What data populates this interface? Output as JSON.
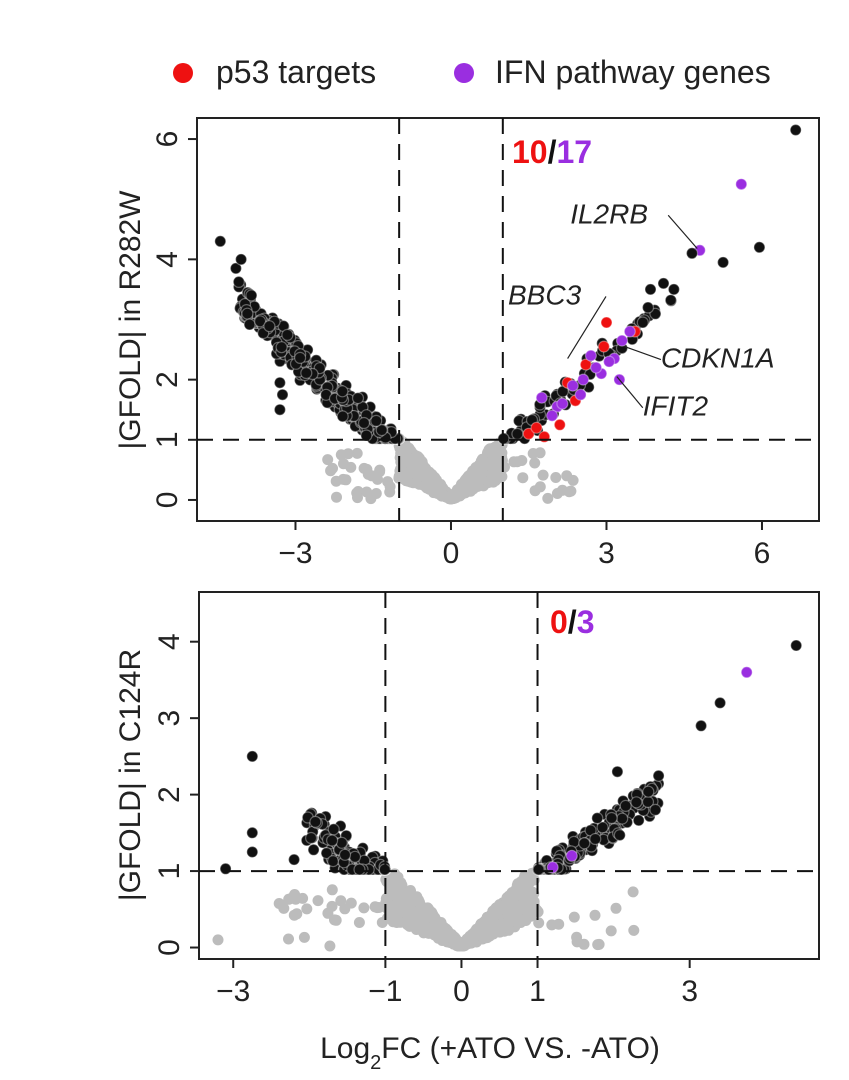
{
  "legend": [
    {
      "label": "p53 targets",
      "color": "#ee1111"
    },
    {
      "label": "IFN pathway genes",
      "color": "#9a2ee0"
    }
  ],
  "colors": {
    "sig": "#111111",
    "nonsig": "#bcbcbc",
    "p53": "#ee1111",
    "ifn": "#9a2ee0",
    "separator": "#111111"
  },
  "chart_data": [
    {
      "type": "scatter",
      "title": "",
      "ylabel": "|GFOLD| in R282W",
      "xlabel": "",
      "xlim": [
        -4.9,
        7.1
      ],
      "ylim": [
        -0.35,
        6.35
      ],
      "xticks": [
        {
          "v": -3,
          "label": "−3"
        },
        {
          "v": 0,
          "label": "0"
        },
        {
          "v": 3,
          "label": "3"
        },
        {
          "v": 6,
          "label": "6"
        }
      ],
      "yticks": [
        {
          "v": 0,
          "label": "0"
        },
        {
          "v": 1,
          "label": "1"
        },
        {
          "v": 2,
          "label": "2"
        },
        {
          "v": 4,
          "label": "4"
        },
        {
          "v": 6,
          "label": "6"
        }
      ],
      "vlines": [
        -1,
        1
      ],
      "hline": 1,
      "counts": {
        "p53": "10",
        "separator": "/",
        "ifn": "17"
      },
      "named_points": [
        {
          "x": 6.65,
          "y": 6.15,
          "group": "sig"
        },
        {
          "x": 5.6,
          "y": 5.25,
          "group": "ifn"
        },
        {
          "x": 4.8,
          "y": 4.15,
          "group": "ifn"
        },
        {
          "x": 4.65,
          "y": 4.1,
          "group": "sig"
        },
        {
          "x": 5.25,
          "y": 3.95,
          "group": "sig"
        },
        {
          "x": 5.95,
          "y": 4.2,
          "group": "sig"
        },
        {
          "x": 3.55,
          "y": 2.8,
          "group": "p53"
        },
        {
          "x": 3.0,
          "y": 2.95,
          "group": "p53"
        },
        {
          "x": 2.4,
          "y": 1.65,
          "group": "p53"
        },
        {
          "x": 2.1,
          "y": 1.25,
          "group": "p53"
        },
        {
          "x": 1.8,
          "y": 1.05,
          "group": "p53"
        },
        {
          "x": 1.5,
          "y": 1.1,
          "group": "p53"
        },
        {
          "x": 2.6,
          "y": 2.25,
          "group": "p53"
        },
        {
          "x": 2.95,
          "y": 2.55,
          "group": "p53"
        },
        {
          "x": 1.65,
          "y": 1.2,
          "group": "p53"
        },
        {
          "x": 2.25,
          "y": 1.95,
          "group": "p53"
        },
        {
          "x": 2.7,
          "y": 2.4,
          "group": "ifn"
        },
        {
          "x": 3.15,
          "y": 2.35,
          "group": "ifn"
        },
        {
          "x": 2.9,
          "y": 2.1,
          "group": "ifn"
        },
        {
          "x": 2.55,
          "y": 2.0,
          "group": "ifn"
        },
        {
          "x": 2.05,
          "y": 1.55,
          "group": "ifn"
        },
        {
          "x": 1.75,
          "y": 1.7,
          "group": "ifn"
        },
        {
          "x": 3.3,
          "y": 2.65,
          "group": "ifn"
        },
        {
          "x": 1.95,
          "y": 1.4,
          "group": "ifn"
        },
        {
          "x": 2.35,
          "y": 1.9,
          "group": "ifn"
        },
        {
          "x": 3.05,
          "y": 2.3,
          "group": "ifn"
        },
        {
          "x": 2.8,
          "y": 2.2,
          "group": "ifn"
        },
        {
          "x": 3.25,
          "y": 2.0,
          "group": "ifn"
        },
        {
          "x": 2.5,
          "y": 1.75,
          "group": "ifn"
        },
        {
          "x": 2.15,
          "y": 1.6,
          "group": "ifn"
        },
        {
          "x": 3.45,
          "y": 2.8,
          "group": "ifn"
        },
        {
          "x": -4.45,
          "y": 4.3,
          "group": "sig"
        },
        {
          "x": -4.15,
          "y": 3.85,
          "group": "sig"
        },
        {
          "x": -4.05,
          "y": 4.0,
          "group": "sig"
        },
        {
          "x": -3.85,
          "y": 3.4,
          "group": "sig"
        },
        {
          "x": -3.3,
          "y": 1.5,
          "group": "sig"
        },
        {
          "x": -3.25,
          "y": 1.75,
          "group": "sig"
        },
        {
          "x": -3.3,
          "y": 1.95,
          "group": "sig"
        },
        {
          "x": 4.3,
          "y": 3.5,
          "group": "sig"
        },
        {
          "x": 4.1,
          "y": 3.6,
          "group": "sig"
        },
        {
          "x": 3.8,
          "y": 3.2,
          "group": "sig"
        },
        {
          "x": 3.7,
          "y": 2.95,
          "group": "sig"
        },
        {
          "x": 3.85,
          "y": 3.5,
          "group": "sig"
        }
      ],
      "annotations": [
        {
          "text": "IL2RB",
          "x": 2.3,
          "y": 4.6,
          "px": 4.75,
          "py": 4.18,
          "anchor": "start"
        },
        {
          "text": "BBC3",
          "x": 1.1,
          "y": 3.25,
          "px": 2.25,
          "py": 2.35,
          "anchor": "start"
        },
        {
          "text": "CDKN1A",
          "x": 4.05,
          "y": 2.2,
          "px": 3.35,
          "py": 2.55,
          "anchor": "start"
        },
        {
          "text": "IFIT2",
          "x": 3.7,
          "y": 1.4,
          "px": 3.2,
          "py": 2.05,
          "anchor": "start"
        }
      ],
      "gen": {
        "seed": 11,
        "sig_left": 360,
        "sig_right": 70,
        "nonsig": 900,
        "left_min": -4.1,
        "right_max": 4.3
      }
    },
    {
      "type": "scatter",
      "title": "",
      "ylabel": "|GFOLD| in C124R",
      "xlabel": "Log2FC (+ATO VS. -ATO)",
      "xlim": [
        -3.45,
        4.7
      ],
      "ylim": [
        -0.15,
        4.65
      ],
      "xticks": [
        {
          "v": -3,
          "label": "−3"
        },
        {
          "v": -1,
          "label": "−1"
        },
        {
          "v": 0,
          "label": "0"
        },
        {
          "v": 1,
          "label": "1"
        },
        {
          "v": 3,
          "label": "3"
        }
      ],
      "yticks": [
        {
          "v": 0,
          "label": "0"
        },
        {
          "v": 1,
          "label": "1"
        },
        {
          "v": 2,
          "label": "2"
        },
        {
          "v": 3,
          "label": "3"
        },
        {
          "v": 4,
          "label": "4"
        }
      ],
      "vlines": [
        -1,
        1
      ],
      "hline": 1,
      "counts": {
        "p53": "0",
        "separator": "/",
        "ifn": "3"
      },
      "named_points": [
        {
          "x": 4.4,
          "y": 3.95,
          "group": "sig"
        },
        {
          "x": 3.75,
          "y": 3.6,
          "group": "ifn"
        },
        {
          "x": 3.4,
          "y": 3.2,
          "group": "sig"
        },
        {
          "x": 3.15,
          "y": 2.9,
          "group": "sig"
        },
        {
          "x": -2.75,
          "y": 2.5,
          "group": "sig"
        },
        {
          "x": -2.75,
          "y": 1.5,
          "group": "sig"
        },
        {
          "x": -2.75,
          "y": 1.25,
          "group": "sig"
        },
        {
          "x": -3.1,
          "y": 1.03,
          "group": "sig"
        },
        {
          "x": -2.2,
          "y": 1.15,
          "group": "sig"
        },
        {
          "x": 2.05,
          "y": 2.3,
          "group": "sig"
        },
        {
          "x": 2.55,
          "y": 1.8,
          "group": "sig"
        },
        {
          "x": 2.3,
          "y": 1.9,
          "group": "sig"
        },
        {
          "x": 1.45,
          "y": 1.2,
          "group": "ifn"
        },
        {
          "x": 1.2,
          "y": 1.05,
          "group": "ifn"
        },
        {
          "x": -3.2,
          "y": 0.1,
          "group": "nonsig"
        }
      ],
      "annotations": [],
      "gen": {
        "seed": 23,
        "sig_left": 130,
        "sig_right": 150,
        "nonsig": 900,
        "left_min": -2.05,
        "right_max": 2.6
      }
    }
  ]
}
